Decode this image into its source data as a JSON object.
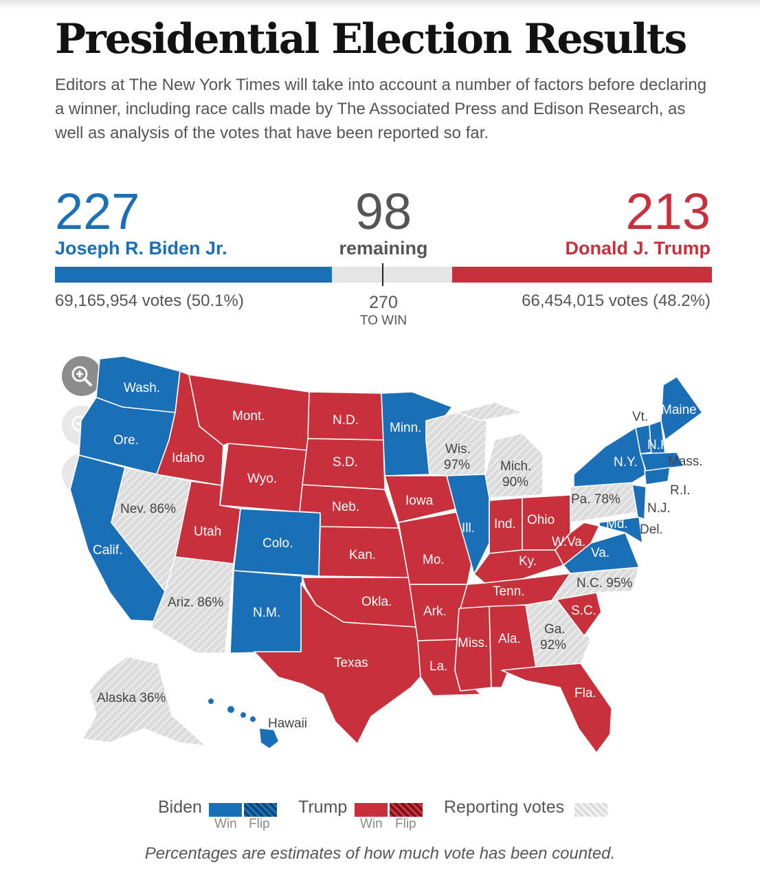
{
  "header": {
    "title": "Presidential Election Results",
    "description": "Editors at The New York Times will take into account a number of factors before declaring a winner, including race calls made by The Associated Press and Edison Research, as well as analysis of the votes that have been reported so far."
  },
  "tally": {
    "biden": {
      "electoral_votes": "227",
      "name": "Joseph R. Biden Jr.",
      "popular": "69,165,954 votes (50.1%)",
      "color": "#1a6fb6"
    },
    "remaining": {
      "value": "98",
      "label": "remaining"
    },
    "trump": {
      "electoral_votes": "213",
      "name": "Donald J. Trump",
      "popular": "66,454,015 votes (48.2%)",
      "color": "#c8303b"
    },
    "to_win": {
      "value": "270",
      "label": "TO WIN"
    },
    "bar": {
      "biden": 227,
      "remaining": 98,
      "trump": 213,
      "total": 538
    }
  },
  "map_controls": {
    "zoom_in": "zoom-in-icon",
    "zoom_out": "zoom-out-icon",
    "reset": "close-icon"
  },
  "map": {
    "colors": {
      "biden": "#1a6fb6",
      "trump": "#c8303b",
      "reporting": "#d9d9d9"
    },
    "labels": {
      "wash": "Wash.",
      "ore": "Ore.",
      "calif": "Calif.",
      "idaho": "Idaho",
      "nev": "Nev. 86%",
      "mont": "Mont.",
      "wyo": "Wyo.",
      "utah": "Utah",
      "colo": "Colo.",
      "ariz": "Ariz. 86%",
      "nm": "N.M.",
      "nd": "N.D.",
      "sd": "S.D.",
      "neb": "Neb.",
      "kan": "Kan.",
      "okla": "Okla.",
      "texas": "Texas",
      "minn": "Minn.",
      "iowa": "Iowa",
      "mo": "Mo.",
      "ark": "Ark.",
      "la": "La.",
      "wis_name": "Wis.",
      "wis_pct": "97%",
      "ill": "Ill.",
      "mich_name": "Mich.",
      "mich_pct": "90%",
      "ind": "Ind.",
      "ohio": "Ohio",
      "ky": "Ky.",
      "tenn": "Tenn.",
      "miss": "Miss.",
      "ala": "Ala.",
      "ga_name": "Ga.",
      "ga_pct": "92%",
      "fla": "Fla.",
      "sc": "S.C.",
      "nc": "N.C. 95%",
      "va": "Va.",
      "wva": "W.Va.",
      "pa": "Pa. 78%",
      "ny": "N.Y.",
      "vt": "Vt.",
      "nh": "N.H.",
      "maine": "Maine",
      "mass": "Mass.",
      "ri": "R.I.",
      "nj": "N.J.",
      "del": "Del.",
      "md": "Md.",
      "alaska": "Alaska 36%",
      "hawaii": "Hawaii"
    }
  },
  "legend": {
    "biden": "Biden",
    "trump": "Trump",
    "reporting": "Reporting votes",
    "win": "Win",
    "flip": "Flip"
  },
  "footnote": "Percentages are estimates of how much vote has been counted."
}
